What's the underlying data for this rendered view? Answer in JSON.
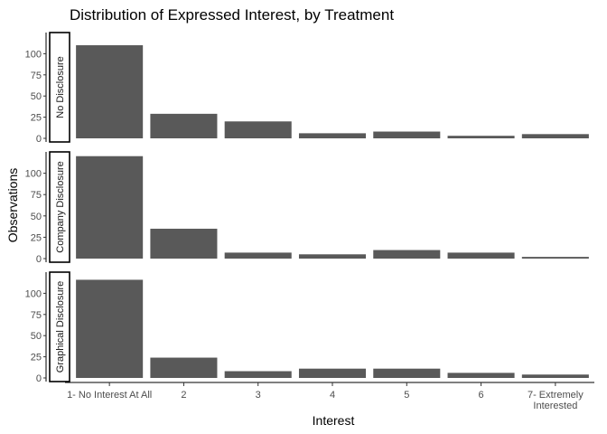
{
  "chart_data": {
    "type": "bar",
    "title": "Distribution of Expressed Interest, by Treatment",
    "xlabel": "Interest",
    "ylabel": "Observations",
    "categories": [
      "1- No Interest At All",
      "2",
      "3",
      "4",
      "5",
      "6",
      "7- Extremely Interested"
    ],
    "ylim": [
      0,
      125
    ],
    "yticks": [
      0,
      25,
      50,
      75,
      100
    ],
    "bar_color": "#595959",
    "grid": false,
    "facets": [
      {
        "name": "No Disclosure",
        "values": [
          110,
          29,
          20,
          6,
          8,
          3,
          5
        ]
      },
      {
        "name": "Company Disclosure",
        "values": [
          120,
          35,
          7,
          5,
          10,
          7,
          2
        ]
      },
      {
        "name": "Graphical Disclosure",
        "values": [
          116,
          24,
          8,
          11,
          11,
          6,
          4
        ]
      }
    ]
  }
}
